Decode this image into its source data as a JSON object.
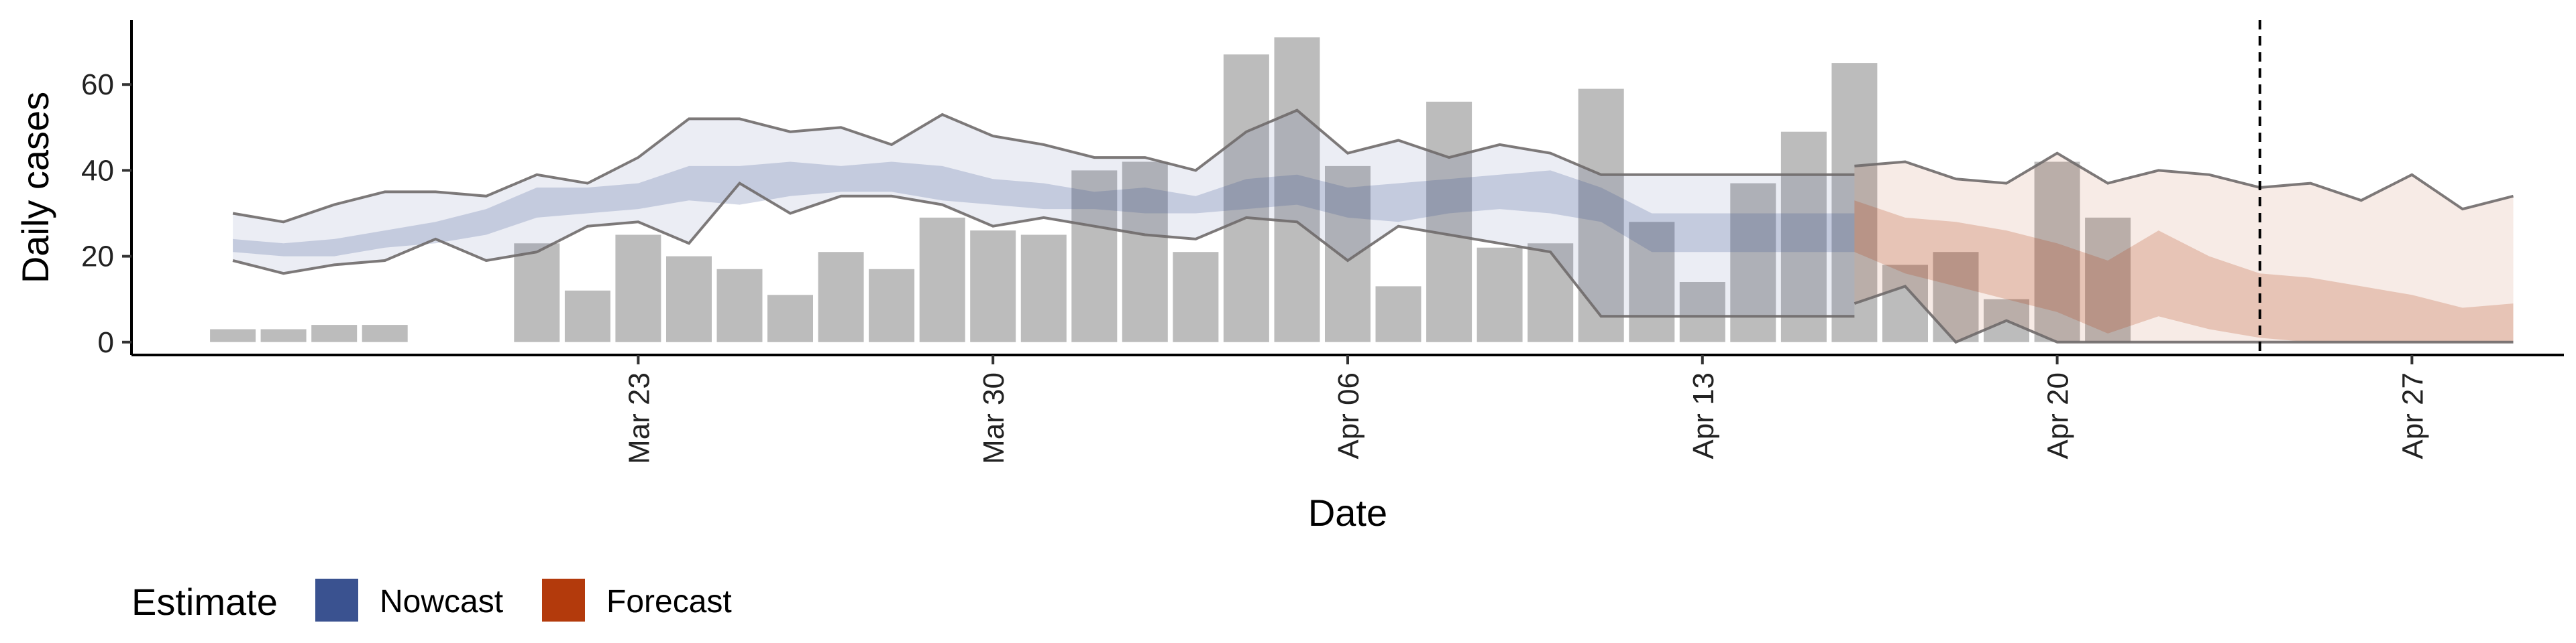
{
  "chart_data": {
    "type": "bar",
    "xlabel": "Date",
    "ylabel": "Daily cases",
    "xlim": [
      "2020-03-13",
      "2020-04-30"
    ],
    "ylim": [
      -3,
      75
    ],
    "x_ticks": [
      {
        "date": "2020-03-23",
        "label": "Mar 23"
      },
      {
        "date": "2020-03-30",
        "label": "Mar 30"
      },
      {
        "date": "2020-04-06",
        "label": "Apr 06"
      },
      {
        "date": "2020-04-13",
        "label": "Apr 13"
      },
      {
        "date": "2020-04-20",
        "label": "Apr 20"
      },
      {
        "date": "2020-04-27",
        "label": "Apr 27"
      }
    ],
    "y_ticks": [
      0,
      20,
      40,
      60
    ],
    "grid": false,
    "vline_date": "2020-04-24",
    "cases": {
      "dates": [
        "2020-03-15",
        "2020-03-16",
        "2020-03-17",
        "2020-03-18",
        "2020-03-19",
        "2020-03-20",
        "2020-03-21",
        "2020-03-22",
        "2020-03-23",
        "2020-03-24",
        "2020-03-25",
        "2020-03-26",
        "2020-03-27",
        "2020-03-28",
        "2020-03-29",
        "2020-03-30",
        "2020-03-31",
        "2020-04-01",
        "2020-04-02",
        "2020-04-03",
        "2020-04-04",
        "2020-04-05",
        "2020-04-06",
        "2020-04-07",
        "2020-04-08",
        "2020-04-09",
        "2020-04-10",
        "2020-04-11",
        "2020-04-12",
        "2020-04-13",
        "2020-04-14",
        "2020-04-15",
        "2020-04-16",
        "2020-04-17",
        "2020-04-18",
        "2020-04-19",
        "2020-04-20",
        "2020-04-21",
        "2020-04-22",
        "2020-04-23",
        "2020-04-24"
      ],
      "values": [
        3,
        3,
        4,
        4,
        0,
        0,
        23,
        12,
        25,
        20,
        17,
        11,
        21,
        17,
        29,
        26,
        25,
        40,
        42,
        21,
        67,
        71,
        41,
        13,
        56,
        22,
        23,
        59,
        28,
        14,
        37,
        49,
        65,
        18,
        21,
        10,
        42,
        29,
        0,
        0,
        0
      ]
    },
    "series": [
      {
        "name": "Nowcast",
        "color": "#3a5290",
        "dates": [
          "2020-03-15",
          "2020-03-16",
          "2020-03-17",
          "2020-03-18",
          "2020-03-19",
          "2020-03-20",
          "2020-03-21",
          "2020-03-22",
          "2020-03-23",
          "2020-03-24",
          "2020-03-25",
          "2020-03-26",
          "2020-03-27",
          "2020-03-28",
          "2020-03-29",
          "2020-03-30",
          "2020-03-31",
          "2020-04-01",
          "2020-04-02",
          "2020-04-03",
          "2020-04-04",
          "2020-04-05",
          "2020-04-06",
          "2020-04-07",
          "2020-04-08",
          "2020-04-09",
          "2020-04-10",
          "2020-04-11",
          "2020-04-12",
          "2020-04-13",
          "2020-04-14",
          "2020-04-15",
          "2020-04-16"
        ],
        "upper90": [
          30,
          28,
          32,
          35,
          35,
          34,
          39,
          37,
          43,
          52,
          52,
          49,
          50,
          46,
          53,
          48,
          46,
          43,
          43,
          40,
          49,
          54,
          44,
          47,
          43,
          46,
          44,
          39,
          39,
          39,
          39,
          39,
          39
        ],
        "upper50": [
          24,
          23,
          24,
          26,
          28,
          31,
          36,
          36,
          37,
          41,
          41,
          42,
          41,
          42,
          41,
          38,
          37,
          35,
          36,
          34,
          38,
          39,
          36,
          37,
          38,
          39,
          40,
          36,
          30,
          30,
          30,
          30,
          30
        ],
        "lower50": [
          21,
          20,
          20,
          22,
          23,
          25,
          29,
          30,
          31,
          33,
          32,
          34,
          35,
          35,
          33,
          32,
          31,
          31,
          30,
          30,
          31,
          32,
          29,
          28,
          30,
          31,
          30,
          28,
          21,
          21,
          21,
          21,
          21
        ],
        "lower90": [
          19,
          16,
          18,
          19,
          24,
          19,
          21,
          27,
          28,
          23,
          37,
          30,
          34,
          34,
          32,
          27,
          29,
          27,
          25,
          24,
          29,
          28,
          19,
          27,
          25,
          23,
          21,
          6,
          6,
          6,
          6,
          6,
          6
        ]
      },
      {
        "name": "Forecast",
        "color": "#b33a0c",
        "dates": [
          "2020-04-16",
          "2020-04-17",
          "2020-04-18",
          "2020-04-19",
          "2020-04-20",
          "2020-04-21",
          "2020-04-22",
          "2020-04-23",
          "2020-04-24",
          "2020-04-25",
          "2020-04-26",
          "2020-04-27",
          "2020-04-28",
          "2020-04-29"
        ],
        "upper90": [
          41,
          42,
          38,
          37,
          44,
          37,
          40,
          39,
          36,
          37,
          33,
          39,
          31,
          34
        ],
        "upper50": [
          33,
          29,
          28,
          26,
          23,
          19,
          26,
          20,
          16,
          15,
          13,
          11,
          8,
          9
        ],
        "lower50": [
          21,
          16,
          13,
          10,
          7,
          2,
          6,
          3,
          1,
          0,
          0,
          0,
          0,
          0
        ],
        "lower90": [
          9,
          13,
          0,
          5,
          0,
          0,
          0,
          0,
          0,
          0,
          0,
          0,
          0,
          0
        ]
      }
    ],
    "legend": {
      "title": "Estimate",
      "position": "bottom-left",
      "items": [
        {
          "label": "Nowcast",
          "color": "#3a5290"
        },
        {
          "label": "Forecast",
          "color": "#b33a0c"
        }
      ]
    }
  }
}
